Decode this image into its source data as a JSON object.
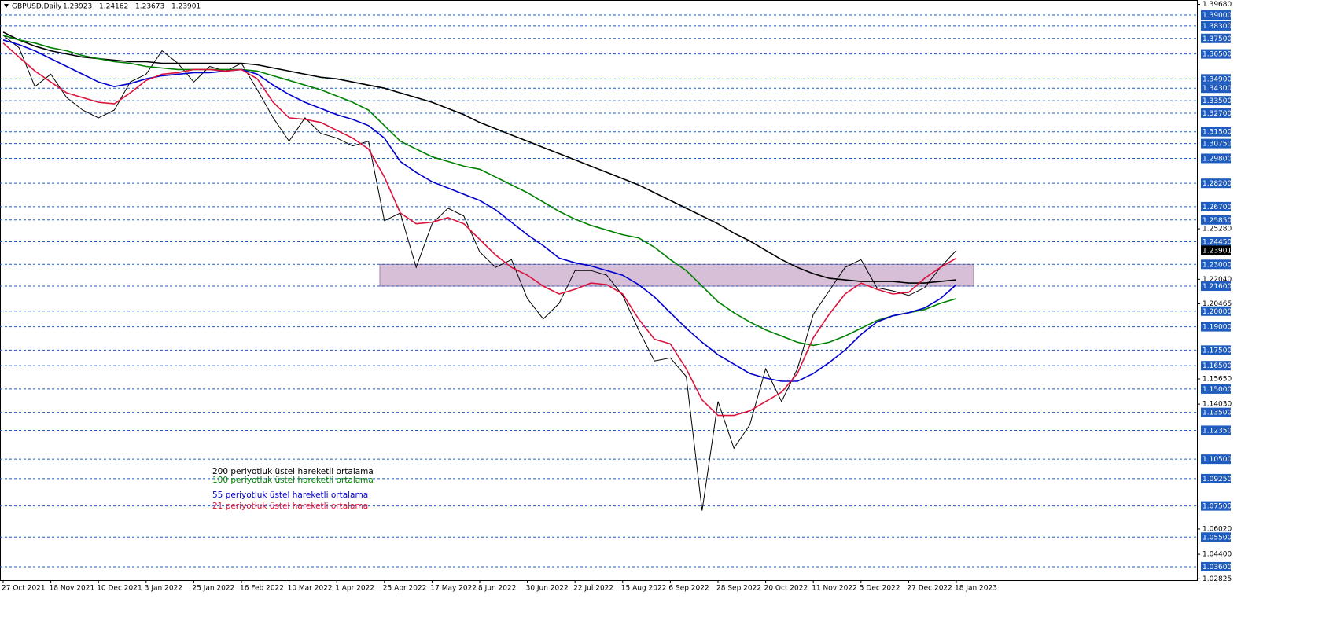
{
  "chart_data": {
    "type": "line",
    "title": "GBPUSD,Daily",
    "ohlc": [
      1.23923,
      1.24162,
      1.23673,
      1.23901
    ],
    "categories": [
      "27 Oct 2021",
      null,
      null,
      "18 Nov 2021",
      null,
      null,
      "10 Dec 2021",
      null,
      null,
      "3 Jan 2022",
      null,
      null,
      "25 Jan 2022",
      null,
      null,
      "16 Feb 2022",
      null,
      null,
      "10 Mar 2022",
      null,
      null,
      "1 Apr 2022",
      null,
      null,
      "25 Apr 2022",
      null,
      null,
      "17 May 2022",
      null,
      null,
      "8 Jun 2022",
      null,
      null,
      "30 Jun 2022",
      null,
      null,
      "22 Jul 2022",
      null,
      null,
      "15 Aug 2022",
      null,
      null,
      "6 Sep 2022",
      null,
      null,
      "28 Sep 2022",
      null,
      null,
      "20 Oct 2022",
      null,
      null,
      "11 Nov 2022",
      null,
      null,
      "5 Dec 2022",
      null,
      null,
      "27 Dec 2022",
      null,
      null,
      "18 Jan 2023"
    ],
    "price": {
      "color": "#000000",
      "values": [
        1.377,
        1.369,
        1.344,
        1.352,
        1.337,
        1.329,
        1.324,
        1.329,
        1.347,
        1.352,
        1.367,
        1.359,
        1.347,
        1.357,
        1.354,
        1.359,
        1.342,
        1.324,
        1.309,
        1.324,
        1.314,
        1.311,
        1.306,
        1.309,
        1.258,
        1.263,
        1.228,
        1.256,
        1.266,
        1.261,
        1.238,
        1.228,
        1.233,
        1.208,
        1.195,
        1.205,
        1.226,
        1.226,
        1.223,
        1.21,
        1.188,
        1.168,
        1.17,
        1.158,
        1.072,
        1.142,
        1.112,
        1.127,
        1.163,
        1.142,
        1.163,
        1.198,
        1.213,
        1.228,
        1.233,
        1.215,
        1.213,
        1.21,
        1.215,
        1.228,
        1.239
      ]
    },
    "series": [
      {
        "name": "200 periyotluk üstel hareketli ortalama",
        "color": "#000000",
        "values": [
          1.379,
          1.374,
          1.37,
          1.367,
          1.365,
          1.363,
          1.362,
          1.361,
          1.36,
          1.36,
          1.359,
          1.359,
          1.359,
          1.359,
          1.359,
          1.359,
          1.358,
          1.356,
          1.354,
          1.352,
          1.35,
          1.349,
          1.347,
          1.345,
          1.343,
          1.34,
          1.337,
          1.334,
          1.33,
          1.326,
          1.321,
          1.317,
          1.313,
          1.309,
          1.305,
          1.301,
          1.297,
          1.293,
          1.289,
          1.285,
          1.281,
          1.276,
          1.271,
          1.266,
          1.261,
          1.256,
          1.25,
          1.245,
          1.239,
          1.233,
          1.228,
          1.224,
          1.221,
          1.22,
          1.219,
          1.219,
          1.219,
          1.218,
          1.218,
          1.219,
          1.22
        ]
      },
      {
        "name": "100 periyotluk üstel hareketli ortalama",
        "color": "#008000",
        "values": [
          1.377,
          1.374,
          1.372,
          1.369,
          1.367,
          1.364,
          1.362,
          1.36,
          1.359,
          1.357,
          1.356,
          1.355,
          1.355,
          1.355,
          1.355,
          1.355,
          1.354,
          1.351,
          1.348,
          1.345,
          1.342,
          1.338,
          1.334,
          1.329,
          1.319,
          1.309,
          1.304,
          1.299,
          1.296,
          1.293,
          1.291,
          1.286,
          1.281,
          1.276,
          1.27,
          1.264,
          1.259,
          1.255,
          1.252,
          1.249,
          1.247,
          1.241,
          1.233,
          1.226,
          1.216,
          1.206,
          1.199,
          1.193,
          1.188,
          1.184,
          1.18,
          1.178,
          1.18,
          1.184,
          1.189,
          1.194,
          1.197,
          1.199,
          1.201,
          1.205,
          1.208
        ]
      },
      {
        "name": "55 periyotluk üstel hareketli ortalama",
        "color": "#0000cd",
        "values": [
          1.374,
          1.371,
          1.367,
          1.362,
          1.357,
          1.352,
          1.347,
          1.344,
          1.346,
          1.349,
          1.351,
          1.352,
          1.353,
          1.353,
          1.354,
          1.355,
          1.352,
          1.345,
          1.339,
          1.334,
          1.33,
          1.326,
          1.323,
          1.319,
          1.311,
          1.296,
          1.289,
          1.283,
          1.279,
          1.275,
          1.271,
          1.265,
          1.257,
          1.249,
          1.242,
          1.234,
          1.231,
          1.229,
          1.226,
          1.223,
          1.217,
          1.209,
          1.199,
          1.189,
          1.18,
          1.172,
          1.166,
          1.16,
          1.157,
          1.155,
          1.155,
          1.16,
          1.167,
          1.175,
          1.185,
          1.193,
          1.197,
          1.199,
          1.202,
          1.208,
          1.217
        ]
      },
      {
        "name": "21 periyotluk üstel hareketli ortalama",
        "color": "#dc143c",
        "values": [
          1.372,
          1.363,
          1.354,
          1.347,
          1.34,
          1.337,
          1.334,
          1.333,
          1.34,
          1.348,
          1.352,
          1.353,
          1.355,
          1.355,
          1.354,
          1.355,
          1.349,
          1.334,
          1.324,
          1.323,
          1.321,
          1.316,
          1.311,
          1.304,
          1.286,
          1.263,
          1.256,
          1.257,
          1.26,
          1.256,
          1.246,
          1.236,
          1.228,
          1.223,
          1.216,
          1.211,
          1.214,
          1.218,
          1.217,
          1.211,
          1.195,
          1.182,
          1.179,
          1.163,
          1.143,
          1.133,
          1.133,
          1.136,
          1.142,
          1.148,
          1.16,
          1.183,
          1.198,
          1.211,
          1.218,
          1.214,
          1.211,
          1.212,
          1.221,
          1.228,
          1.234
        ]
      }
    ],
    "zone": {
      "from": 1.216,
      "to": 1.23,
      "color": "#d8bfd8"
    },
    "ylim": [
      1.0274,
      1.3996
    ],
    "yticks": [
      {
        "value": 1.3968,
        "label": "1.39680"
      },
      {
        "value": 1.2528,
        "label": "1.25280"
      },
      {
        "value": 1.2204,
        "label": "1.22040"
      },
      {
        "value": 1.20465,
        "label": "1.20465"
      },
      {
        "value": 1.1565,
        "label": "1.15650"
      },
      {
        "value": 1.1403,
        "label": "1.14030"
      },
      {
        "value": 1.0602,
        "label": "1.06020"
      },
      {
        "value": 1.044,
        "label": "1.04400"
      },
      {
        "value": 1.02825,
        "label": "1.02825"
      }
    ],
    "levels": [
      {
        "value": 1.39,
        "label": "1.39000"
      },
      {
        "value": 1.383,
        "label": "1.38300"
      },
      {
        "value": 1.375,
        "label": "1.37500"
      },
      {
        "value": 1.365,
        "label": "1.36500"
      },
      {
        "value": 1.349,
        "label": "1.34900"
      },
      {
        "value": 1.343,
        "label": "1.34300"
      },
      {
        "value": 1.335,
        "label": "1.33500"
      },
      {
        "value": 1.327,
        "label": "1.32700"
      },
      {
        "value": 1.315,
        "label": "1.31500"
      },
      {
        "value": 1.3075,
        "label": "1.30750"
      },
      {
        "value": 1.298,
        "label": "1.29800"
      },
      {
        "value": 1.282,
        "label": "1.28200"
      },
      {
        "value": 1.267,
        "label": "1.26700"
      },
      {
        "value": 1.2585,
        "label": "1.25850"
      },
      {
        "value": 1.2445,
        "label": "1.24450"
      },
      {
        "value": 1.23,
        "label": "1.23000"
      },
      {
        "value": 1.216,
        "label": "1.21600"
      },
      {
        "value": 1.2,
        "label": "1.20000"
      },
      {
        "value": 1.19,
        "label": "1.19000"
      },
      {
        "value": 1.175,
        "label": "1.17500"
      },
      {
        "value": 1.165,
        "label": "1.16500"
      },
      {
        "value": 1.15,
        "label": "1.15000"
      },
      {
        "value": 1.135,
        "label": "1.13500"
      },
      {
        "value": 1.1235,
        "label": "1.12350"
      },
      {
        "value": 1.105,
        "label": "1.10500"
      },
      {
        "value": 1.0925,
        "label": "1.09250"
      },
      {
        "value": 1.075,
        "label": "1.07500"
      },
      {
        "value": 1.055,
        "label": "1.05500"
      },
      {
        "value": 1.036,
        "label": "1.03600"
      }
    ],
    "level_color": "#1e5cbf"
  }
}
